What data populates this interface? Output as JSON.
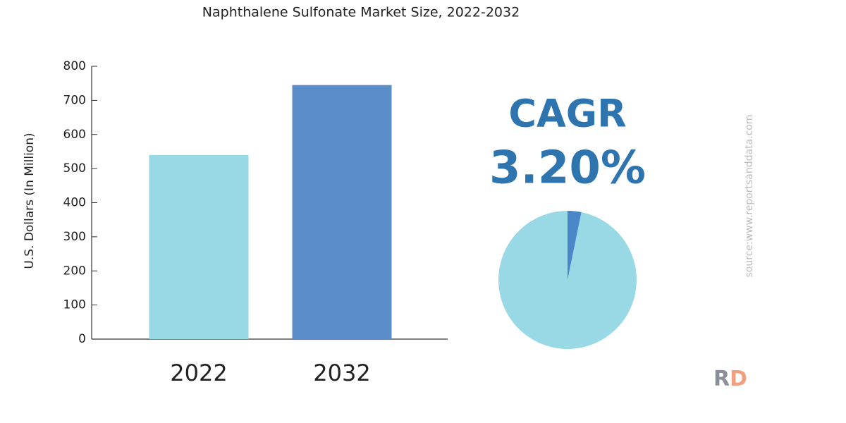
{
  "chart_data": [
    {
      "type": "bar",
      "title": "Naphthalene Sulfonate Market Size, 2022-2032",
      "y_label": "U.S. Dollars (In Million)",
      "categories": [
        "2022",
        "2032"
      ],
      "values": [
        540,
        745
      ],
      "colors": [
        "#99d9e5",
        "#5b8ec8"
      ],
      "ylim": [
        0,
        800
      ],
      "yticks": [
        0,
        100,
        200,
        300,
        400,
        500,
        600,
        700,
        800
      ],
      "grid": false
    },
    {
      "type": "pie",
      "title": "CAGR",
      "values": [
        3.2
      ],
      "value_labels": [
        "3.20%"
      ],
      "color": "#4a86c8",
      "base_color": "#99d9e5"
    }
  ],
  "source": "source:www.reportsanddata.com",
  "logo": [
    "R",
    "D"
  ]
}
